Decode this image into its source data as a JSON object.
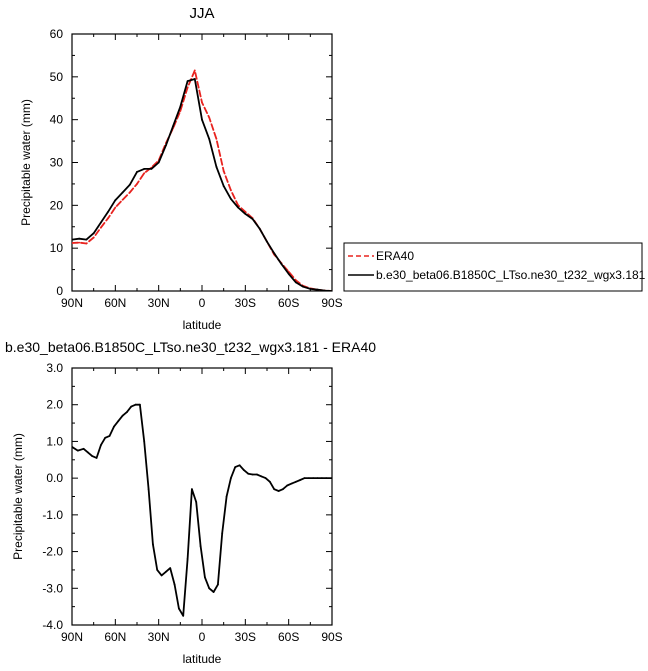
{
  "chart_data": [
    {
      "type": "line",
      "title": "JJA",
      "xlabel": "latitude",
      "ylabel": "Precipitable water (mm)",
      "xlim": [
        90,
        -90
      ],
      "ylim": [
        0,
        60
      ],
      "x_ticks": [
        90,
        60,
        30,
        0,
        -30,
        -60,
        -90
      ],
      "x_tick_labels": [
        "90N",
        "60N",
        "30N",
        "0",
        "30S",
        "60S",
        "90S"
      ],
      "y_ticks": [
        0,
        10,
        20,
        30,
        40,
        50,
        60
      ],
      "y_tick_labels": [
        "0",
        "10",
        "20",
        "30",
        "40",
        "50",
        "60"
      ],
      "legend_position": "right",
      "series": [
        {
          "name": "ERA40",
          "color": "#e8231f",
          "dash": "dashed",
          "x": [
            90,
            85,
            80,
            75,
            70,
            65,
            60,
            55,
            50,
            45,
            40,
            35,
            30,
            25,
            20,
            15,
            10,
            5,
            0,
            -5,
            -10,
            -15,
            -20,
            -25,
            -30,
            -35,
            -40,
            -45,
            -50,
            -55,
            -60,
            -65,
            -70,
            -75,
            -80,
            -85,
            -90
          ],
          "y": [
            11.2,
            11.3,
            11.1,
            12.5,
            14.8,
            17.0,
            19.5,
            21.3,
            23.0,
            25.0,
            27.5,
            28.8,
            30.5,
            34.5,
            38.0,
            42.0,
            47.5,
            51.5,
            44.0,
            40.5,
            35.5,
            28.0,
            23.5,
            20.0,
            18.5,
            17.0,
            14.5,
            11.5,
            8.5,
            6.5,
            4.5,
            2.5,
            1.2,
            0.6,
            0.3,
            0.1,
            0.0
          ]
        },
        {
          "name": "b.e30_beta06.B1850C_LTso.ne30_t232_wgx3.181",
          "color": "#000000",
          "dash": "solid",
          "x": [
            90,
            85,
            80,
            75,
            70,
            65,
            60,
            55,
            50,
            45,
            40,
            35,
            30,
            25,
            20,
            15,
            10,
            5,
            0,
            -5,
            -10,
            -15,
            -20,
            -25,
            -30,
            -35,
            -40,
            -45,
            -50,
            -55,
            -60,
            -65,
            -70,
            -75,
            -80,
            -85,
            -90
          ],
          "y": [
            12.0,
            12.2,
            12.0,
            13.5,
            16.0,
            18.5,
            21.2,
            23.0,
            24.8,
            27.8,
            28.5,
            28.5,
            30.0,
            34.0,
            38.5,
            43.0,
            49.0,
            49.5,
            40.0,
            35.5,
            29.0,
            24.5,
            21.5,
            19.5,
            18.0,
            16.8,
            14.5,
            11.5,
            8.8,
            6.3,
            4.0,
            2.0,
            1.0,
            0.5,
            0.3,
            0.1,
            0.0
          ]
        }
      ]
    },
    {
      "type": "line",
      "title": "b.e30_beta06.B1850C_LTso.ne30_t232_wgx3.181 - ERA40",
      "xlabel": "latitude",
      "ylabel": "Precipitable water (mm)",
      "xlim": [
        90,
        -90
      ],
      "ylim": [
        -4.0,
        3.0
      ],
      "x_ticks": [
        90,
        60,
        30,
        0,
        -30,
        -60,
        -90
      ],
      "x_tick_labels": [
        "90N",
        "60N",
        "30N",
        "0",
        "30S",
        "60S",
        "90S"
      ],
      "y_ticks": [
        3,
        2,
        1,
        0,
        -1,
        -2,
        -3,
        -4
      ],
      "y_tick_labels": [
        "3.0",
        "2.0",
        "1.0",
        "0.0",
        "-1.0",
        "-2.0",
        "-3.0",
        "-4.0"
      ],
      "series": [
        {
          "color": "#000000",
          "dash": "solid",
          "x": [
            90,
            86,
            82,
            79,
            76,
            73,
            70,
            67,
            64,
            61,
            58,
            55,
            52,
            49,
            46,
            43,
            40,
            37,
            34,
            31,
            28,
            25,
            22,
            19,
            16,
            13,
            10,
            7,
            4,
            1,
            -2,
            -5,
            -8,
            -11,
            -14,
            -17,
            -20,
            -23,
            -26,
            -29,
            -32,
            -35,
            -38,
            -41,
            -44,
            -47,
            -50,
            -53,
            -56,
            -59,
            -62,
            -65,
            -68,
            -71,
            -74,
            -77,
            -80,
            -83,
            -86,
            -90
          ],
          "y": [
            0.85,
            0.75,
            0.8,
            0.7,
            0.6,
            0.55,
            0.9,
            1.1,
            1.15,
            1.4,
            1.55,
            1.7,
            1.8,
            1.95,
            2.0,
            2.0,
            1.0,
            -0.3,
            -1.8,
            -2.5,
            -2.65,
            -2.55,
            -2.45,
            -2.9,
            -3.55,
            -3.75,
            -2.2,
            -0.3,
            -0.65,
            -1.85,
            -2.7,
            -3.0,
            -3.1,
            -2.9,
            -1.5,
            -0.5,
            0.0,
            0.3,
            0.35,
            0.22,
            0.12,
            0.1,
            0.1,
            0.05,
            0.0,
            -0.1,
            -0.3,
            -0.35,
            -0.3,
            -0.2,
            -0.15,
            -0.1,
            -0.05,
            0.0,
            0.0,
            0.0,
            0.0,
            0.0,
            0.0,
            0.0
          ]
        }
      ]
    }
  ]
}
